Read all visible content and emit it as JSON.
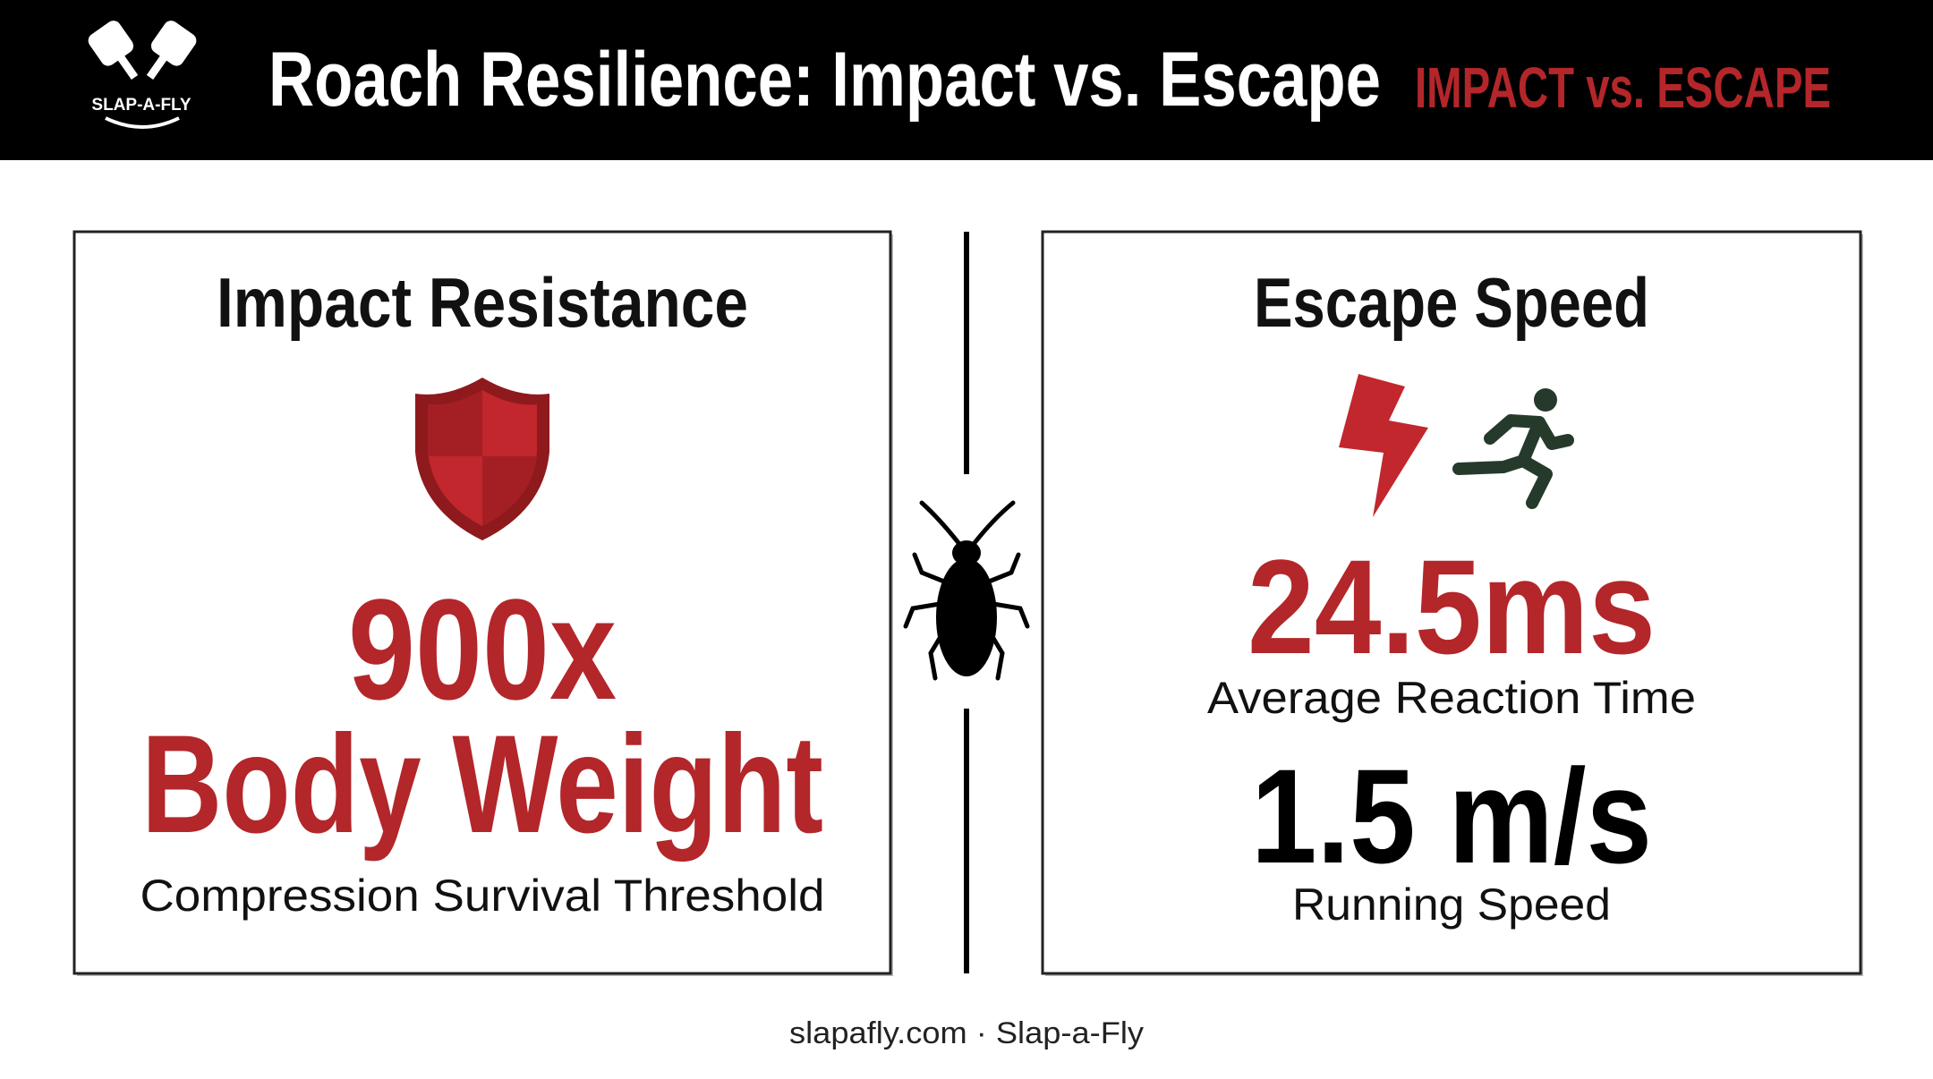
{
  "header": {
    "logo": "SLAP-A-FLY",
    "title": "Roach Resilience: Impact vs. Escape",
    "tag": "IMPACT vs. ESCAPE"
  },
  "panels": [
    {
      "heading": "Impact Resistance",
      "stats": [
        {
          "value": "900x",
          "label": "Body Weight"
        }
      ],
      "caption": "Compression Survival Threshold"
    },
    {
      "heading": "Escape Speed",
      "stats": [
        {
          "value": "24.5ms",
          "label": "Average Reaction Time"
        },
        {
          "value": "1.5 m/s",
          "label": "Running Speed"
        }
      ]
    }
  ],
  "footer": "slapafly.com · Slap-a-Fly"
}
